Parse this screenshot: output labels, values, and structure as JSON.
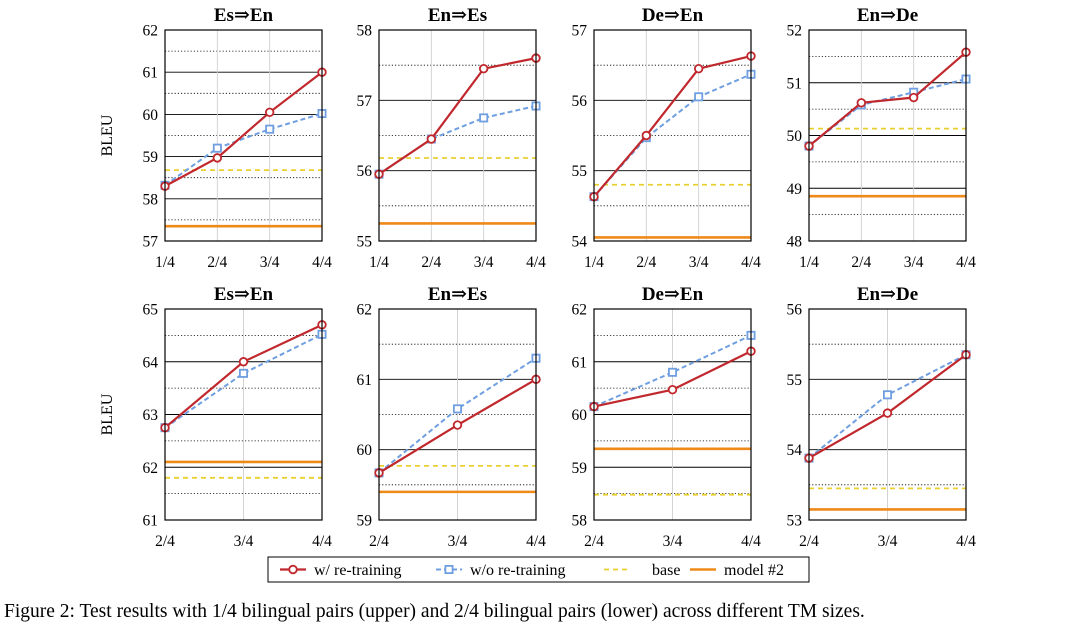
{
  "colors": {
    "retrain": "#c0282d",
    "noretrain": "#6f9fe0",
    "base": "#e8d030",
    "model2": "#ee8a18"
  },
  "legend": {
    "retrain": "w/ re-training",
    "noretrain": "w/o re-training",
    "base": "base",
    "model2": "model #2"
  },
  "caption": "Figure 2: Test results with 1/4 bilingual pairs (upper) and 2/4 bilingual pairs (lower) across different TM sizes.",
  "chart_data": [
    {
      "type": "line",
      "title": "Es⇒En",
      "ylabel": "BLEU",
      "categories": [
        "1/4",
        "2/4",
        "3/4",
        "4/4"
      ],
      "ylim": [
        57,
        62
      ],
      "yticks": [
        57,
        58,
        59,
        60,
        61,
        62
      ],
      "series": [
        {
          "name": "w/ re-training",
          "values": [
            58.3,
            58.97,
            60.05,
            61.0
          ]
        },
        {
          "name": "w/o re-training",
          "values": [
            58.32,
            59.2,
            59.65,
            60.02
          ]
        }
      ],
      "base": 58.68,
      "model2": 57.35
    },
    {
      "type": "line",
      "title": "En⇒Es",
      "ylabel": "",
      "categories": [
        "1/4",
        "2/4",
        "3/4",
        "4/4"
      ],
      "ylim": [
        55,
        58
      ],
      "yticks": [
        55,
        56,
        57,
        58
      ],
      "series": [
        {
          "name": "w/ re-training",
          "values": [
            55.95,
            56.45,
            57.45,
            57.6
          ]
        },
        {
          "name": "w/o re-training",
          "values": [
            55.95,
            56.45,
            56.75,
            56.92
          ]
        }
      ],
      "base": 56.18,
      "model2": 55.25
    },
    {
      "type": "line",
      "title": "De⇒En",
      "ylabel": "",
      "categories": [
        "1/4",
        "2/4",
        "3/4",
        "4/4"
      ],
      "ylim": [
        54,
        57
      ],
      "yticks": [
        54,
        55,
        56,
        57
      ],
      "series": [
        {
          "name": "w/ re-training",
          "values": [
            54.63,
            55.5,
            56.45,
            56.63
          ]
        },
        {
          "name": "w/o re-training",
          "values": [
            54.63,
            55.47,
            56.05,
            56.37
          ]
        }
      ],
      "base": 54.8,
      "model2": 54.05
    },
    {
      "type": "line",
      "title": "En⇒De",
      "ylabel": "",
      "categories": [
        "1/4",
        "2/4",
        "3/4",
        "4/4"
      ],
      "ylim": [
        48,
        52
      ],
      "yticks": [
        48,
        49,
        50,
        51,
        52
      ],
      "series": [
        {
          "name": "w/ re-training",
          "values": [
            49.8,
            50.62,
            50.72,
            51.58
          ]
        },
        {
          "name": "w/o re-training",
          "values": [
            49.8,
            50.58,
            50.82,
            51.07
          ]
        }
      ],
      "base": 50.13,
      "model2": 48.85
    },
    {
      "type": "line",
      "title": "Es⇒En",
      "ylabel": "BLEU",
      "categories": [
        "2/4",
        "3/4",
        "4/4"
      ],
      "ylim": [
        61,
        65
      ],
      "yticks": [
        61,
        62,
        63,
        64,
        65
      ],
      "series": [
        {
          "name": "w/ re-training",
          "values": [
            62.75,
            64.0,
            64.7
          ]
        },
        {
          "name": "w/o re-training",
          "values": [
            62.75,
            63.78,
            64.52
          ]
        }
      ],
      "base": 61.8,
      "model2": 62.1
    },
    {
      "type": "line",
      "title": "En⇒Es",
      "ylabel": "",
      "categories": [
        "2/4",
        "3/4",
        "4/4"
      ],
      "ylim": [
        59,
        62
      ],
      "yticks": [
        59,
        60,
        61,
        62
      ],
      "series": [
        {
          "name": "w/ re-training",
          "values": [
            59.67,
            60.35,
            61.0
          ]
        },
        {
          "name": "w/o re-training",
          "values": [
            59.67,
            60.58,
            61.3
          ]
        }
      ],
      "base": 59.77,
      "model2": 59.4
    },
    {
      "type": "line",
      "title": "De⇒En",
      "ylabel": "",
      "categories": [
        "2/4",
        "3/4",
        "4/4"
      ],
      "ylim": [
        58,
        62
      ],
      "yticks": [
        58,
        59,
        60,
        61,
        62
      ],
      "series": [
        {
          "name": "w/ re-training",
          "values": [
            60.15,
            60.47,
            61.2
          ]
        },
        {
          "name": "w/o re-training",
          "values": [
            60.15,
            60.8,
            61.5
          ]
        }
      ],
      "base": 58.48,
      "model2": 59.35
    },
    {
      "type": "line",
      "title": "En⇒De",
      "ylabel": "",
      "categories": [
        "2/4",
        "3/4",
        "4/4"
      ],
      "ylim": [
        53,
        56
      ],
      "yticks": [
        53,
        54,
        55,
        56
      ],
      "series": [
        {
          "name": "w/ re-training",
          "values": [
            53.88,
            54.52,
            55.35
          ]
        },
        {
          "name": "w/o re-training",
          "values": [
            53.88,
            54.78,
            55.35
          ]
        }
      ],
      "base": 53.45,
      "model2": 53.15
    }
  ]
}
